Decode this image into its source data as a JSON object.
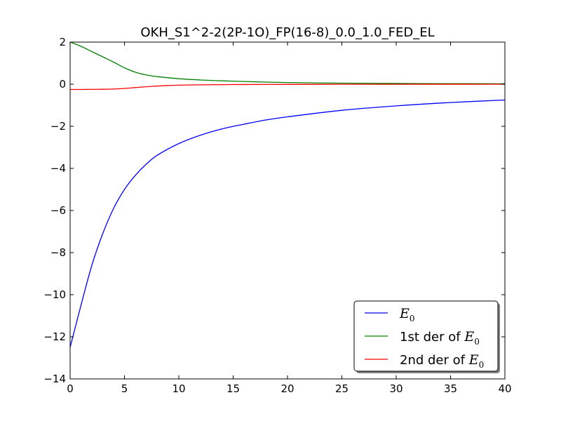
{
  "chart_data": {
    "type": "line",
    "title": "OKH_S1^2-2(2P-1O)_FP(16-8)_0.0_1.0_FED_EL",
    "xlabel": "",
    "ylabel": "",
    "xlim": [
      0,
      40
    ],
    "ylim": [
      -14,
      2
    ],
    "x_ticks": [
      "0",
      "5",
      "10",
      "15",
      "20",
      "25",
      "30",
      "35",
      "40"
    ],
    "y_ticks": [
      "2",
      "0",
      "−2",
      "−4",
      "−6",
      "−8",
      "−10",
      "−12",
      "−14"
    ],
    "x_tick_values": [
      0,
      5,
      10,
      15,
      20,
      25,
      30,
      35,
      40
    ],
    "y_tick_values": [
      2,
      0,
      -2,
      -4,
      -6,
      -8,
      -10,
      -12,
      -14
    ],
    "grid": false,
    "legend_position": "lower-right",
    "series": [
      {
        "name_prefix": "",
        "name_math": "E",
        "name_sub": "0",
        "color": "#0000ff",
        "x": [
          0,
          1,
          2,
          3,
          4,
          5,
          6,
          7,
          8,
          10,
          12,
          14,
          16,
          18,
          20,
          25,
          30,
          35,
          40
        ],
        "y": [
          -12.5,
          -10.5,
          -8.6,
          -7.1,
          -5.9,
          -5.0,
          -4.33,
          -3.8,
          -3.38,
          -2.82,
          -2.42,
          -2.12,
          -1.9,
          -1.7,
          -1.55,
          -1.24,
          -1.03,
          -0.87,
          -0.75
        ]
      },
      {
        "name_prefix": "1st der of ",
        "name_math": "E",
        "name_sub": "0",
        "color": "#008000",
        "x": [
          0,
          1,
          2,
          3,
          4,
          5,
          6,
          7,
          8,
          10,
          12,
          14,
          16,
          18,
          20,
          25,
          30,
          35,
          40
        ],
        "y": [
          2.0,
          1.8,
          1.55,
          1.3,
          1.05,
          0.78,
          0.57,
          0.44,
          0.36,
          0.26,
          0.2,
          0.16,
          0.13,
          0.1,
          0.08,
          0.05,
          0.035,
          0.025,
          0.02
        ]
      },
      {
        "name_prefix": "2nd der of ",
        "name_math": "E",
        "name_sub": "0",
        "color": "#ff0000",
        "x": [
          0,
          1,
          2,
          3,
          4,
          5,
          6,
          7,
          8,
          9,
          10,
          12,
          14,
          16,
          20,
          25,
          30,
          35,
          40
        ],
        "y": [
          -0.25,
          -0.25,
          -0.245,
          -0.24,
          -0.23,
          -0.2,
          -0.16,
          -0.12,
          -0.09,
          -0.06,
          -0.045,
          -0.03,
          -0.02,
          -0.015,
          -0.01,
          -0.005,
          -0.003,
          -0.002,
          -0.001
        ]
      }
    ]
  }
}
